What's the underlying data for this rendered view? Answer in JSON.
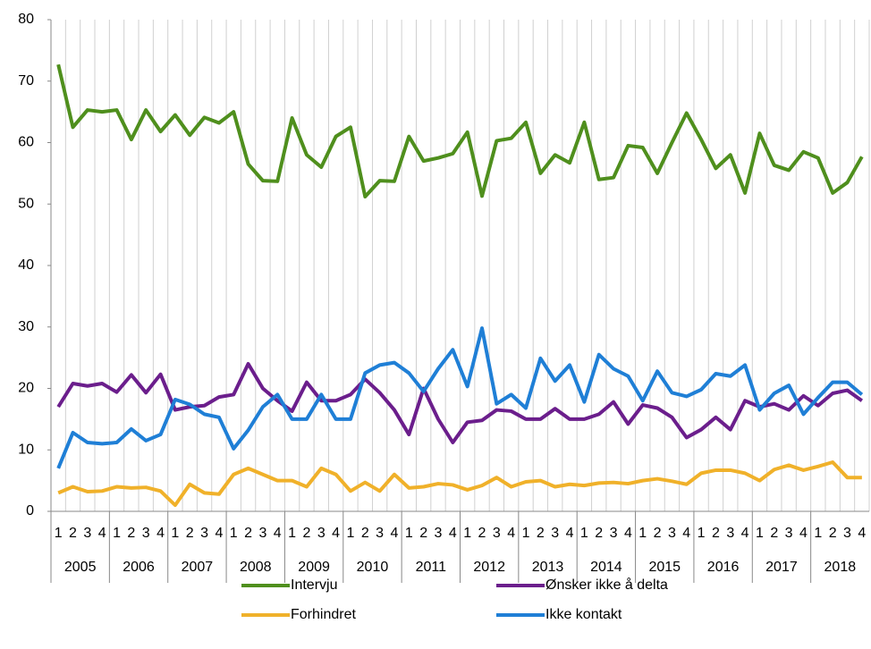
{
  "chart_data": {
    "type": "line",
    "categories": [
      "1",
      "2",
      "3",
      "4",
      "1",
      "2",
      "3",
      "4",
      "1",
      "2",
      "3",
      "4",
      "1",
      "2",
      "3",
      "4",
      "1",
      "2",
      "3",
      "4",
      "1",
      "2",
      "3",
      "4",
      "1",
      "2",
      "3",
      "4",
      "1",
      "2",
      "3",
      "4",
      "1",
      "2",
      "3",
      "4",
      "1",
      "2",
      "3",
      "4",
      "1",
      "2",
      "3",
      "4",
      "1",
      "2",
      "3",
      "4",
      "1",
      "2",
      "3",
      "4",
      "1",
      "2",
      "3",
      "4"
    ],
    "groups": [
      "2005",
      "2006",
      "2007",
      "2008",
      "2009",
      "2010",
      "2011",
      "2012",
      "2013",
      "2014",
      "2015",
      "2016",
      "2017",
      "2018"
    ],
    "series": [
      {
        "name": "Intervju",
        "color": "#4f8f1d",
        "values": [
          72.7,
          62.5,
          65.3,
          65.0,
          65.3,
          60.5,
          65.3,
          61.8,
          64.5,
          61.2,
          64.1,
          63.2,
          65.0,
          56.5,
          53.8,
          53.7,
          64.0,
          58.0,
          56.0,
          61.0,
          62.5,
          51.2,
          53.8,
          53.7,
          61.0,
          57.0,
          57.5,
          58.2,
          61.7,
          51.3,
          60.3,
          60.7,
          63.3,
          55.0,
          58.0,
          56.7,
          63.3,
          54.0,
          54.3,
          59.5,
          59.2,
          55.0,
          60.0,
          64.8,
          60.5,
          55.8,
          58.0,
          51.8,
          61.5,
          56.3,
          55.5,
          58.5,
          57.5,
          51.8,
          53.5,
          57.7
        ]
      },
      {
        "name": "Ønsker ikke å delta",
        "color": "#6b1e8c",
        "values": [
          17.0,
          20.8,
          20.4,
          20.8,
          19.4,
          22.2,
          19.3,
          22.3,
          16.5,
          17.0,
          17.2,
          18.6,
          19.0,
          24.0,
          20.0,
          18.0,
          16.3,
          21.0,
          18.0,
          18.0,
          19.0,
          21.5,
          19.3,
          16.5,
          12.5,
          20.0,
          15.0,
          11.2,
          14.5,
          14.8,
          16.5,
          16.3,
          15.0,
          15.0,
          16.7,
          15.0,
          15.0,
          15.8,
          17.8,
          14.2,
          17.3,
          16.8,
          15.3,
          12.0,
          13.3,
          15.3,
          13.3,
          18.0,
          17.0,
          17.5,
          16.5,
          18.8,
          17.2,
          19.2,
          19.7,
          18.0
        ]
      },
      {
        "name": "Forhindret",
        "color": "#f0b12a",
        "values": [
          3.0,
          4.0,
          3.2,
          3.3,
          4.0,
          3.8,
          3.9,
          3.3,
          1.0,
          4.4,
          3.0,
          2.8,
          6.0,
          7.0,
          6.0,
          5.0,
          5.0,
          4.0,
          7.0,
          6.0,
          3.3,
          4.7,
          3.3,
          6.0,
          3.8,
          4.0,
          4.5,
          4.3,
          3.5,
          4.2,
          5.5,
          4.0,
          4.8,
          5.0,
          4.0,
          4.4,
          4.2,
          4.6,
          4.7,
          4.5,
          5.0,
          5.3,
          4.9,
          4.4,
          6.2,
          6.7,
          6.7,
          6.2,
          5.0,
          6.8,
          7.5,
          6.7,
          7.3,
          8.0,
          5.5,
          5.5
        ]
      },
      {
        "name": "Ikke kontakt",
        "color": "#1f7fd6",
        "values": [
          7.0,
          12.8,
          11.2,
          11.0,
          11.2,
          13.4,
          11.5,
          12.5,
          18.2,
          17.4,
          15.8,
          15.3,
          10.2,
          13.2,
          17.0,
          19.0,
          15.0,
          15.0,
          19.0,
          15.0,
          15.0,
          22.5,
          23.8,
          24.2,
          22.5,
          19.5,
          23.2,
          26.3,
          20.3,
          29.8,
          17.5,
          19.0,
          16.8,
          24.9,
          21.2,
          23.8,
          17.8,
          25.5,
          23.2,
          22.0,
          18.0,
          22.8,
          19.3,
          18.7,
          19.8,
          22.4,
          22.0,
          23.8,
          16.5,
          19.2,
          20.5,
          15.8,
          18.5,
          21.0,
          21.0,
          19.0
        ]
      }
    ],
    "ylim": [
      0,
      80
    ],
    "yticks": [
      0,
      10,
      20,
      30,
      40,
      50,
      60,
      70,
      80
    ]
  }
}
